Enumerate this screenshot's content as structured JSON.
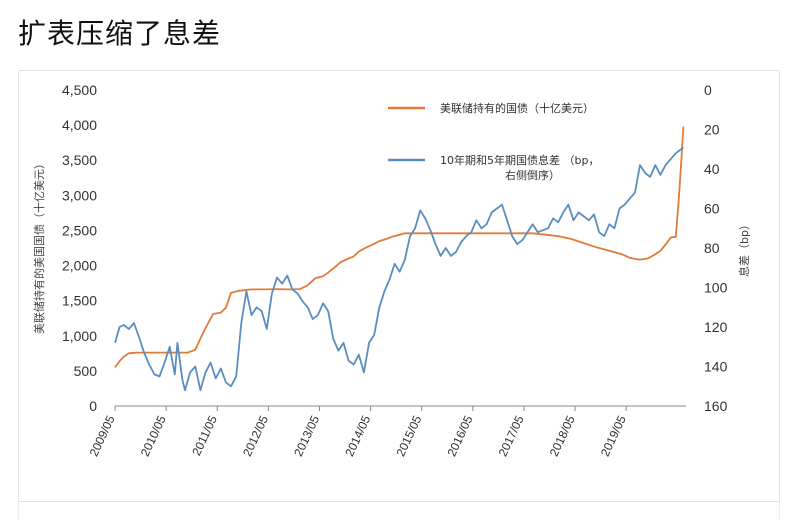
{
  "page": {
    "title": "扩表压缩了息差"
  },
  "chart_data": {
    "type": "line",
    "x_axis": {
      "tick_labels": [
        "2009/05",
        "2010/05",
        "2011/05",
        "2012/05",
        "2013/05",
        "2014/05",
        "2015/05",
        "2016/05",
        "2017/05",
        "2018/05",
        "2019/05"
      ],
      "range": [
        2009.33,
        2020.5
      ]
    },
    "left_axis": {
      "label": "美联储持有的美国国债（十亿美元）",
      "ylim": [
        0,
        4500
      ],
      "ticks": [
        0,
        500,
        1000,
        1500,
        2000,
        2500,
        3000,
        3500,
        4000,
        4500
      ],
      "tick_labels": [
        "0",
        "500",
        "1,000",
        "1,500",
        "2,000",
        "2,500",
        "3,000",
        "3,500",
        "4,000",
        "4,500"
      ]
    },
    "right_axis": {
      "label": "息差（bp）",
      "ylim": [
        160,
        0
      ],
      "inverted": true,
      "ticks": [
        0,
        20,
        40,
        60,
        80,
        100,
        120,
        140,
        160
      ],
      "tick_labels": [
        "0",
        "20",
        "40",
        "60",
        "80",
        "100",
        "120",
        "140",
        "160"
      ]
    },
    "grid": false,
    "legend_position": "top-right",
    "series": [
      {
        "name": "美联储持有的国债（十亿美元）",
        "axis": "left",
        "color": "#E07B39",
        "x": [
          2009.33,
          2009.42,
          2009.5,
          2009.6,
          2009.75,
          2010.0,
          2010.25,
          2010.5,
          2010.75,
          2010.9,
          2011.0,
          2011.1,
          2011.25,
          2011.4,
          2011.5,
          2011.6,
          2011.75,
          2012.0,
          2012.25,
          2012.5,
          2012.75,
          2012.95,
          2013.1,
          2013.25,
          2013.4,
          2013.5,
          2013.6,
          2013.75,
          2013.9,
          2014.0,
          2014.1,
          2014.25,
          2014.4,
          2014.5,
          2014.6,
          2014.75,
          2014.85,
          2015.0,
          2015.5,
          2016.0,
          2016.5,
          2017.0,
          2017.5,
          2017.75,
          2018.0,
          2018.25,
          2018.5,
          2018.75,
          2019.0,
          2019.25,
          2019.4,
          2019.5,
          2019.6,
          2019.75,
          2019.9,
          2020.0,
          2020.1,
          2020.2,
          2020.3,
          2020.36,
          2020.4,
          2020.45
        ],
        "values": [
          550,
          640,
          700,
          750,
          760,
          760,
          760,
          760,
          760,
          800,
          960,
          1110,
          1310,
          1330,
          1400,
          1610,
          1640,
          1660,
          1660,
          1665,
          1660,
          1665,
          1720,
          1820,
          1850,
          1900,
          1960,
          2050,
          2100,
          2130,
          2200,
          2260,
          2310,
          2350,
          2370,
          2410,
          2430,
          2460,
          2460,
          2460,
          2460,
          2460,
          2460,
          2440,
          2420,
          2380,
          2320,
          2260,
          2210,
          2160,
          2110,
          2095,
          2085,
          2100,
          2160,
          2210,
          2300,
          2400,
          2410,
          2950,
          3400,
          3980
        ]
      },
      {
        "name": "10年期和5年期国债息差 （bp，右侧倒序）",
        "axis": "right",
        "color": "#5B8DBF",
        "x": [
          2009.33,
          2009.42,
          2009.5,
          2009.6,
          2009.7,
          2009.8,
          2009.9,
          2010.0,
          2010.1,
          2010.2,
          2010.3,
          2010.4,
          2010.5,
          2010.55,
          2010.65,
          2010.7,
          2010.8,
          2010.9,
          2011.0,
          2011.1,
          2011.2,
          2011.3,
          2011.4,
          2011.5,
          2011.6,
          2011.7,
          2011.8,
          2011.9,
          2012.0,
          2012.1,
          2012.2,
          2012.3,
          2012.4,
          2012.5,
          2012.6,
          2012.7,
          2012.8,
          2012.9,
          2013.0,
          2013.1,
          2013.2,
          2013.3,
          2013.4,
          2013.5,
          2013.6,
          2013.7,
          2013.8,
          2013.9,
          2014.0,
          2014.1,
          2014.2,
          2014.3,
          2014.4,
          2014.5,
          2014.6,
          2014.7,
          2014.8,
          2014.9,
          2015.0,
          2015.1,
          2015.2,
          2015.3,
          2015.4,
          2015.5,
          2015.6,
          2015.7,
          2015.8,
          2015.9,
          2016.0,
          2016.1,
          2016.2,
          2016.3,
          2016.4,
          2016.5,
          2016.6,
          2016.7,
          2016.8,
          2016.9,
          2017.0,
          2017.1,
          2017.2,
          2017.3,
          2017.4,
          2017.5,
          2017.6,
          2017.7,
          2017.8,
          2017.9,
          2018.0,
          2018.1,
          2018.2,
          2018.3,
          2018.4,
          2018.5,
          2018.6,
          2018.7,
          2018.8,
          2018.9,
          2019.0,
          2019.1,
          2019.2,
          2019.3,
          2019.4,
          2019.5,
          2019.6,
          2019.7,
          2019.8,
          2019.9,
          2020.0,
          2020.1,
          2020.2,
          2020.3,
          2020.4,
          2020.45
        ],
        "values": [
          128,
          120,
          119,
          121,
          118,
          125,
          133,
          139,
          144,
          145,
          138,
          130,
          144,
          128,
          147,
          152,
          143,
          140,
          152,
          143,
          138,
          146,
          141,
          148,
          150,
          145,
          118,
          102,
          114,
          110,
          112,
          121,
          103,
          95,
          98,
          94,
          101,
          103,
          107,
          110,
          116,
          114,
          108,
          112,
          126,
          132,
          128,
          137,
          139,
          134,
          143,
          128,
          124,
          110,
          102,
          96,
          88,
          92,
          86,
          74,
          70,
          61,
          65,
          71,
          78,
          84,
          80,
          84,
          82,
          77,
          74,
          72,
          66,
          70,
          68,
          62,
          60,
          58,
          66,
          74,
          78,
          76,
          72,
          68,
          72,
          71,
          70,
          65,
          67,
          62,
          58,
          66,
          62,
          64,
          66,
          63,
          72,
          74,
          68,
          70,
          60,
          58,
          55,
          52,
          38,
          42,
          44,
          38,
          43,
          38,
          35,
          32,
          30,
          29
        ]
      }
    ]
  }
}
